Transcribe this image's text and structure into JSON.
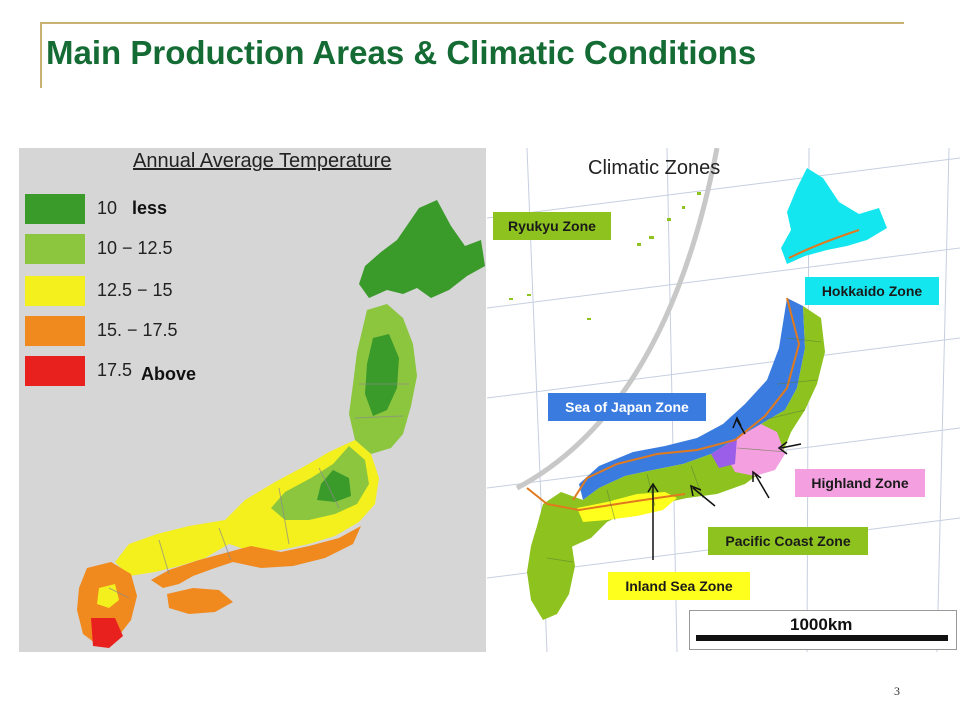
{
  "slide": {
    "title": "Main Production Areas & Climatic Conditions",
    "page_number": "3"
  },
  "temperature_map": {
    "title": "Annual Average Temperature",
    "legend": [
      {
        "range": "10",
        "tag": "less",
        "color": "#3a9a2a"
      },
      {
        "range": "10 − 12.5",
        "tag": "",
        "color": "#8cc63f"
      },
      {
        "range": "12.5 − 15",
        "tag": "",
        "color": "#f4f01e"
      },
      {
        "range": "15. − 17.5",
        "tag": "",
        "color": "#f0891e"
      },
      {
        "range": "17.5",
        "tag": "Above",
        "color": "#e8201e"
      }
    ]
  },
  "zone_map": {
    "title": "Climatic Zones",
    "zones": [
      {
        "name": "Ryukyu Zone",
        "color": "#8dc21f",
        "text_color": "#1a1a1a"
      },
      {
        "name": "Hokkaido Zone",
        "color": "#14e6f0",
        "text_color": "#1a1a1a"
      },
      {
        "name": "Sea of Japan Zone",
        "color": "#3a7be0",
        "text_color": "#ffffff"
      },
      {
        "name": "Highland Zone",
        "color": "#f4a0e0",
        "text_color": "#1a1a1a"
      },
      {
        "name": "Pacific Coast Zone",
        "color": "#8dc21f",
        "text_color": "#1a1a1a"
      },
      {
        "name": "Inland Sea Zone",
        "color": "#ffff1e",
        "text_color": "#1a1a1a"
      }
    ],
    "scale_label": "1000km"
  }
}
